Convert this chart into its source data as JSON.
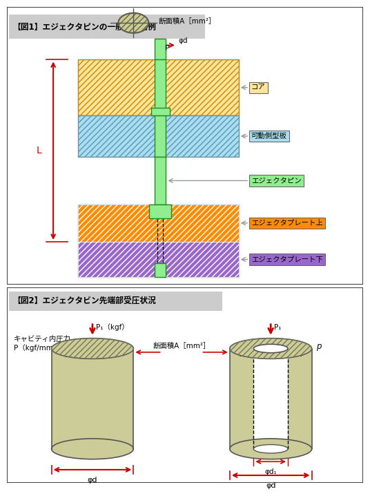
{
  "fig1_title": "【図1】エジェクタピンの一般的利用例",
  "fig2_title": "【図2】エジェクタビン先端部受圧状況",
  "label_core": "コア",
  "label_movable": "可動側型板",
  "label_pin": "エジェクタピン",
  "label_plate_upper": "エジェクタプレート上",
  "label_plate_lower": "エジェクタプレート下",
  "label_cross_section": "断面積A［mm²］",
  "label_phi_d": "φd",
  "label_P": "P",
  "label_L": "L",
  "label_cavity_line1": "キャビティ内圧力",
  "label_cavity_line2": "P（kgf/mm²）",
  "label_P1_kgf": "P₁（kgf）",
  "label_P1": "P₁",
  "label_p": "p",
  "label_cross_section2": "断面積A［mm²］",
  "label_phi_d_bottom": "φd",
  "label_phi_d1": "φd₁",
  "label_phi_d_outer": "φd",
  "color_core": "#FFE599",
  "color_movable": "#AADDEE",
  "color_pin": "#90EE90",
  "color_plate_upper": "#FF8C00",
  "color_plate_lower": "#9966CC",
  "color_border": "#444444",
  "color_red": "#CC0000",
  "color_gray": "#999999",
  "color_label_core_bg": "#FFE599",
  "color_label_movable_bg": "#AADDEE",
  "color_label_pin_bg": "#90EE90",
  "color_label_plate_upper_bg": "#FF8C00",
  "color_label_plate_lower_bg": "#9966CC",
  "color_circle_bg": "#CCCC99",
  "fig_bg": "#FFFFFF"
}
